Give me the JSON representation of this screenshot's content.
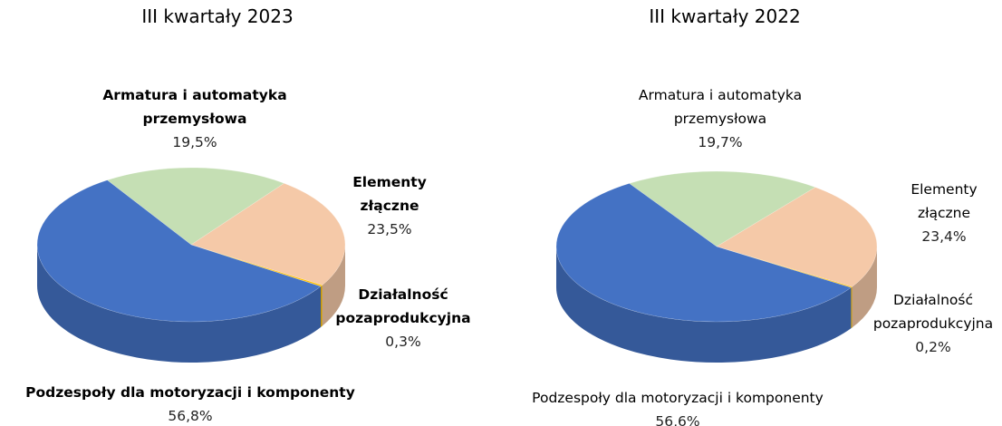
{
  "chart_data": [
    {
      "type": "pie",
      "title": "III kwartały 2023",
      "categories": [
        "Armatura i automatyka przemysłowa",
        "Elementy złączne",
        "Działalność pozaprodukcyjna",
        "Podzespoły dla motoryzacji i komponenty"
      ],
      "values": [
        19.5,
        23.5,
        0.3,
        56.8
      ],
      "value_labels": [
        "19,5%",
        "23,5%",
        "0,3%",
        "56,8%"
      ],
      "colors": [
        "#c5dfb4",
        "#f5c9a8",
        "#ffc000",
        "#4472c4"
      ]
    },
    {
      "type": "pie",
      "title": "III kwartały 2022",
      "categories": [
        "Armatura i automatyka przemysłowa",
        "Elementy złączne",
        "Działalność pozaprodukcyjna",
        "Podzespoły dla motoryzacji i komponenty"
      ],
      "values": [
        19.7,
        23.4,
        0.2,
        56.6
      ],
      "value_labels": [
        "19,7%",
        "23,4%",
        "0,2%",
        "56,6%"
      ],
      "colors": [
        "#c5dfb4",
        "#f5c9a8",
        "#ffc000",
        "#4472c4"
      ]
    }
  ]
}
